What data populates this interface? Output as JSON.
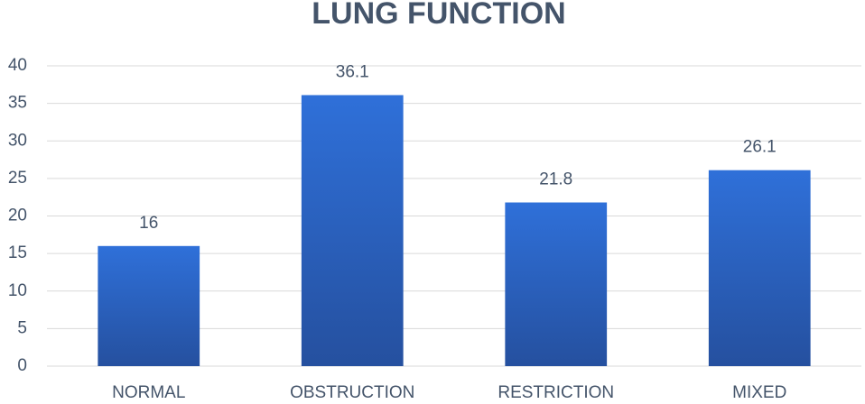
{
  "chart_data": {
    "type": "bar",
    "title": "LUNG FUNCTION",
    "categories": [
      "NORMAL",
      "OBSTRUCTION",
      "RESTRICTION",
      "MIXED"
    ],
    "values": [
      16,
      36.1,
      21.8,
      26.1
    ],
    "color": [
      "#2f70d9",
      "#25509f"
    ],
    "ylim": [
      0,
      40
    ],
    "yticks": [
      0,
      5,
      10,
      15,
      20,
      25,
      30,
      35,
      40
    ],
    "grid": true
  }
}
